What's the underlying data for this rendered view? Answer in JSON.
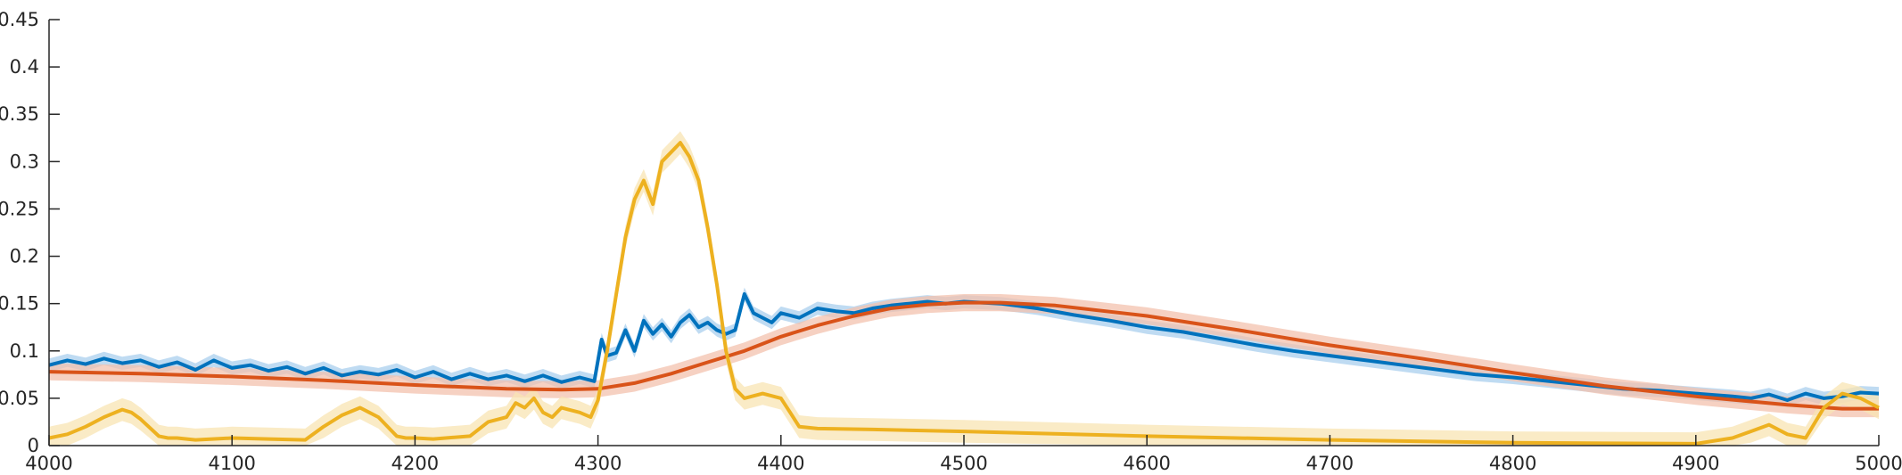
{
  "chart_data": {
    "type": "line",
    "title": "",
    "xlabel": "",
    "ylabel": "",
    "xlim": [
      4000,
      5000
    ],
    "ylim": [
      0,
      0.45
    ],
    "xticks": [
      "4000",
      "4100",
      "4200",
      "4300",
      "4400",
      "4500",
      "4600",
      "4700",
      "4800",
      "4900",
      "5000"
    ],
    "yticks": [
      "0",
      "0.05",
      "0.1",
      "0.15",
      "0.2",
      "0.25",
      "0.3",
      "0.35",
      "0.4",
      "0.45"
    ],
    "grid": false,
    "legend": "none",
    "series": [
      {
        "color": "#0072bd",
        "band_color": "#a9cfee",
        "band_halfwidth": 0.007,
        "x": [
          4000,
          4010,
          4020,
          4030,
          4040,
          4050,
          4060,
          4070,
          4080,
          4090,
          4100,
          4110,
          4120,
          4130,
          4140,
          4150,
          4160,
          4170,
          4180,
          4190,
          4200,
          4210,
          4220,
          4230,
          4240,
          4250,
          4260,
          4270,
          4280,
          4290,
          4298,
          4302,
          4305,
          4310,
          4315,
          4320,
          4325,
          4330,
          4335,
          4340,
          4345,
          4350,
          4355,
          4360,
          4365,
          4370,
          4375,
          4380,
          4385,
          4390,
          4395,
          4400,
          4410,
          4420,
          4430,
          4440,
          4450,
          4460,
          4470,
          4480,
          4490,
          4500,
          4520,
          4540,
          4560,
          4580,
          4600,
          4620,
          4640,
          4660,
          4680,
          4700,
          4720,
          4740,
          4760,
          4780,
          4800,
          4820,
          4840,
          4860,
          4880,
          4900,
          4920,
          4930,
          4940,
          4950,
          4960,
          4970,
          4980,
          4990,
          5000
        ],
        "y": [
          0.085,
          0.09,
          0.086,
          0.092,
          0.087,
          0.09,
          0.083,
          0.088,
          0.08,
          0.09,
          0.082,
          0.085,
          0.079,
          0.083,
          0.076,
          0.082,
          0.074,
          0.078,
          0.075,
          0.08,
          0.072,
          0.078,
          0.07,
          0.076,
          0.07,
          0.074,
          0.068,
          0.074,
          0.067,
          0.072,
          0.068,
          0.112,
          0.095,
          0.098,
          0.122,
          0.1,
          0.132,
          0.118,
          0.128,
          0.115,
          0.13,
          0.138,
          0.125,
          0.13,
          0.122,
          0.118,
          0.122,
          0.16,
          0.14,
          0.135,
          0.13,
          0.14,
          0.135,
          0.145,
          0.142,
          0.14,
          0.145,
          0.148,
          0.15,
          0.152,
          0.15,
          0.152,
          0.15,
          0.145,
          0.138,
          0.132,
          0.125,
          0.12,
          0.113,
          0.106,
          0.1,
          0.095,
          0.09,
          0.085,
          0.08,
          0.075,
          0.072,
          0.068,
          0.064,
          0.06,
          0.058,
          0.055,
          0.052,
          0.05,
          0.054,
          0.048,
          0.055,
          0.05,
          0.052,
          0.056,
          0.055
        ]
      },
      {
        "color": "#d95319",
        "band_color": "#f3c2ad",
        "band_halfwidth": 0.009,
        "x": [
          4000,
          4050,
          4100,
          4150,
          4200,
          4250,
          4280,
          4300,
          4320,
          4340,
          4360,
          4380,
          4400,
          4420,
          4440,
          4460,
          4480,
          4500,
          4520,
          4550,
          4600,
          4650,
          4700,
          4750,
          4800,
          4850,
          4900,
          4950,
          4980,
          5000
        ],
        "y": [
          0.078,
          0.076,
          0.073,
          0.069,
          0.064,
          0.06,
          0.059,
          0.06,
          0.066,
          0.076,
          0.088,
          0.1,
          0.115,
          0.127,
          0.137,
          0.145,
          0.149,
          0.151,
          0.151,
          0.148,
          0.137,
          0.122,
          0.106,
          0.092,
          0.077,
          0.063,
          0.052,
          0.043,
          0.039,
          0.039
        ]
      },
      {
        "color": "#edb120",
        "band_color": "#f8e4b3",
        "band_halfwidth": 0.012,
        "x": [
          4000,
          4010,
          4020,
          4030,
          4040,
          4045,
          4050,
          4060,
          4065,
          4070,
          4080,
          4100,
          4120,
          4140,
          4150,
          4160,
          4170,
          4175,
          4180,
          4190,
          4195,
          4200,
          4210,
          4230,
          4240,
          4250,
          4255,
          4260,
          4265,
          4270,
          4275,
          4280,
          4290,
          4296,
          4300,
          4305,
          4310,
          4315,
          4320,
          4325,
          4330,
          4335,
          4340,
          4345,
          4350,
          4355,
          4360,
          4365,
          4370,
          4375,
          4380,
          4390,
          4400,
          4405,
          4410,
          4420,
          4450,
          4500,
          4600,
          4700,
          4800,
          4900,
          4920,
          4930,
          4940,
          4950,
          4960,
          4970,
          4980,
          4990,
          5000
        ],
        "y": [
          0.008,
          0.012,
          0.02,
          0.03,
          0.038,
          0.035,
          0.028,
          0.01,
          0.008,
          0.008,
          0.006,
          0.008,
          0.007,
          0.006,
          0.02,
          0.032,
          0.04,
          0.035,
          0.03,
          0.01,
          0.008,
          0.008,
          0.007,
          0.01,
          0.025,
          0.03,
          0.045,
          0.04,
          0.05,
          0.035,
          0.03,
          0.04,
          0.035,
          0.03,
          0.048,
          0.1,
          0.16,
          0.22,
          0.26,
          0.28,
          0.255,
          0.3,
          0.31,
          0.32,
          0.305,
          0.28,
          0.23,
          0.17,
          0.1,
          0.06,
          0.05,
          0.055,
          0.05,
          0.035,
          0.02,
          0.018,
          0.017,
          0.015,
          0.01,
          0.006,
          0.003,
          0.002,
          0.008,
          0.015,
          0.022,
          0.012,
          0.008,
          0.04,
          0.055,
          0.05,
          0.04
        ]
      }
    ]
  }
}
